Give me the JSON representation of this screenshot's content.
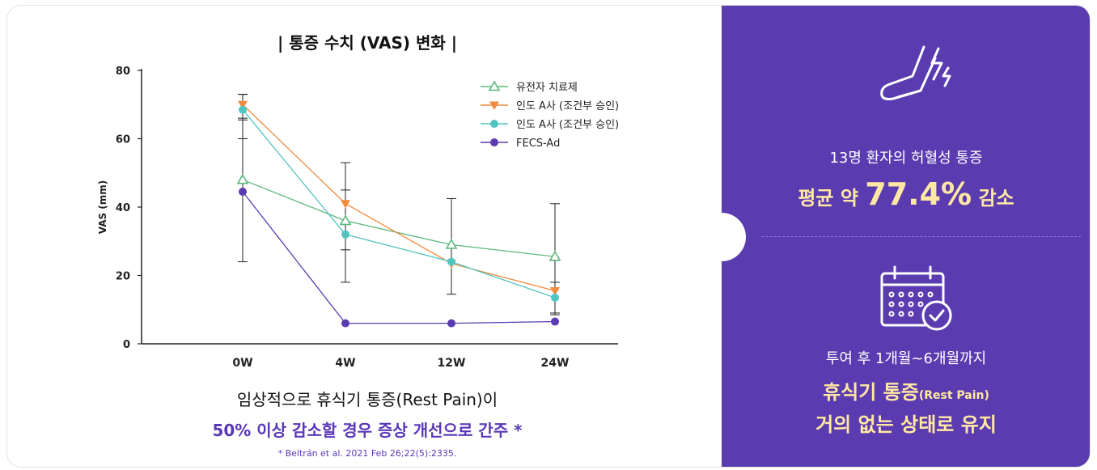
{
  "chart_data": {
    "type": "line",
    "title": "| 통증 수치 (VAS) 변화 |",
    "ylabel": "VAS (mm)",
    "xlabel": "",
    "categories": [
      "0W",
      "4W",
      "12W",
      "24W"
    ],
    "ylim": [
      0,
      80
    ],
    "yticks": [
      0,
      20,
      40,
      60,
      80
    ],
    "legend_position": "top-right",
    "series": [
      {
        "name": "유전자 치료제",
        "marker": "triangle-up-open",
        "color": "#5cb87a",
        "values": [
          48,
          36,
          29,
          25.5
        ],
        "err": [
          null,
          null,
          null,
          null
        ]
      },
      {
        "name": "인도 A사 (조건부 승인)",
        "marker": "triangle-down",
        "color": "#f08a3c",
        "values": [
          70,
          41,
          23.5,
          15.5
        ],
        "err": [
          [
            66,
            73
          ],
          [
            27.5,
            53
          ],
          [
            14.5,
            42.5
          ],
          [
            9,
            41
          ]
        ]
      },
      {
        "name": "인도 A사 (조건부 승인)",
        "marker": "circle",
        "color": "#52c4c0",
        "values": [
          68.5,
          32,
          24,
          13.5
        ],
        "err": [
          [
            60,
            73
          ],
          [
            18,
            45
          ],
          [
            null,
            null
          ],
          [
            8.5,
            18
          ]
        ]
      },
      {
        "name": "FECS-Ad",
        "marker": "circle",
        "color": "#5b3bb0",
        "values": [
          44.5,
          6,
          6,
          6.5
        ],
        "err": [
          [
            24,
            65.5
          ],
          [
            null,
            null
          ],
          [
            null,
            null
          ],
          [
            null,
            null
          ]
        ]
      }
    ]
  },
  "captions": {
    "line1": "임상적으로 휴식기 통증(Rest Pain)이",
    "line2": "50% 이상 감소할 경우 증상 개선으로 간주 *",
    "footnote": "* Beltrán et al. 2021 Feb 26;22(5):2335."
  },
  "panel": {
    "top_icon": "leg-pain-icon",
    "top_line1": "13명 환자의 허혈성 통증",
    "top_line2_pre": "평균 약 ",
    "top_line2_big": "77.4%",
    "top_line2_post": " 감소",
    "bottom_icon": "calendar-check-icon",
    "bottom_line1": "투여 후 1개월~6개월까지",
    "bottom_line2_main": "휴식기 통증",
    "bottom_line2_sub": "(Rest Pain)",
    "bottom_line3": "거의 없는 상태로 유지",
    "colors": {
      "panel_bg": "#5b3bb0",
      "highlight": "#ffe8a3"
    }
  }
}
